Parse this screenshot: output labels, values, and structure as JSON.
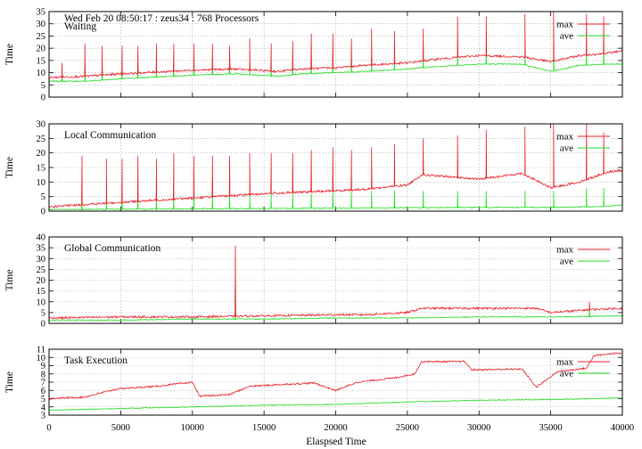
{
  "figure": {
    "header": "Wed Feb 20 08:50:17 : zeus34 : 768 Processors",
    "xlabel": "Elaspsed Time",
    "x_ticks": [
      0,
      5000,
      10000,
      15000,
      20000,
      25000,
      30000,
      35000,
      40000
    ]
  },
  "colors": {
    "max": "#e8202a",
    "ave": "#22dd22",
    "grid": "#9a9a9a"
  },
  "chart_data": [
    {
      "type": "line",
      "title": "Waiting",
      "ylabel": "Time",
      "xlim": [
        0,
        40000
      ],
      "ylim": [
        0,
        35
      ],
      "y_ticks": [
        0,
        5,
        10,
        15,
        20,
        25,
        30,
        35
      ],
      "legend": "top-right",
      "grid": true,
      "baseline": {
        "max": [
          [
            0,
            8
          ],
          [
            2500,
            8.5
          ],
          [
            5000,
            9.5
          ],
          [
            10000,
            11
          ],
          [
            13000,
            11.5
          ],
          [
            16000,
            10.5
          ],
          [
            17500,
            11.5
          ],
          [
            20000,
            12
          ],
          [
            22000,
            13
          ],
          [
            25000,
            14
          ],
          [
            27000,
            15.5
          ],
          [
            30000,
            17
          ],
          [
            33000,
            16.5
          ],
          [
            35000,
            14.5
          ],
          [
            37000,
            17
          ],
          [
            39000,
            18
          ],
          [
            40000,
            19
          ]
        ],
        "ave": [
          [
            0,
            6.5
          ],
          [
            2500,
            6.5
          ],
          [
            5000,
            7.5
          ],
          [
            10000,
            9
          ],
          [
            13000,
            9.5
          ],
          [
            16000,
            8.5
          ],
          [
            17500,
            9.5
          ],
          [
            20000,
            10
          ],
          [
            22000,
            10.5
          ],
          [
            25000,
            11.5
          ],
          [
            27000,
            12.5
          ],
          [
            30000,
            13.5
          ],
          [
            33000,
            13.5
          ],
          [
            35000,
            10.5
          ],
          [
            37000,
            13
          ],
          [
            39000,
            13.5
          ],
          [
            40000,
            13.5
          ]
        ]
      },
      "spikes": {
        "x": [
          900,
          2500,
          3700,
          5100,
          6200,
          7500,
          8700,
          10100,
          11400,
          12600,
          14000,
          15500,
          17000,
          18300,
          19800,
          21100,
          22500,
          24100,
          26100,
          28500,
          30500,
          33200,
          35200,
          37500,
          38700
        ],
        "max": [
          14,
          22,
          21,
          21,
          21,
          22,
          22,
          22,
          22,
          21,
          24,
          22,
          23,
          26,
          26,
          24,
          28,
          27,
          28,
          33,
          33,
          34,
          35,
          34,
          33
        ],
        "ave": [
          11,
          13,
          13,
          13,
          13,
          13,
          13,
          13,
          13,
          13,
          14,
          14,
          14,
          15,
          15,
          15,
          16,
          16,
          17,
          19,
          19,
          19,
          20,
          20,
          20
        ]
      },
      "series": [
        {
          "name": "max"
        },
        {
          "name": "ave"
        }
      ]
    },
    {
      "type": "line",
      "title": "Local Communication",
      "ylabel": "Time",
      "xlim": [
        0,
        40000
      ],
      "ylim": [
        0,
        30
      ],
      "y_ticks": [
        0,
        5,
        10,
        15,
        20,
        25,
        30
      ],
      "legend": "top-right",
      "grid": true,
      "baseline": {
        "max": [
          [
            0,
            1.5
          ],
          [
            5000,
            3
          ],
          [
            10000,
            4.5
          ],
          [
            15000,
            6
          ],
          [
            20000,
            7
          ],
          [
            22000,
            7.5
          ],
          [
            25000,
            9
          ],
          [
            26000,
            12.5
          ],
          [
            30000,
            11
          ],
          [
            33000,
            13
          ],
          [
            35000,
            8
          ],
          [
            37000,
            10
          ],
          [
            39000,
            13.5
          ],
          [
            40000,
            14
          ]
        ],
        "ave": [
          [
            0,
            0.5
          ],
          [
            5000,
            0.7
          ],
          [
            10000,
            0.8
          ],
          [
            15000,
            0.9
          ],
          [
            20000,
            1
          ],
          [
            25000,
            1.2
          ],
          [
            30000,
            1.3
          ],
          [
            35000,
            1.3
          ],
          [
            38000,
            1.5
          ],
          [
            40000,
            2
          ]
        ]
      },
      "spikes": {
        "x": [
          2300,
          4000,
          5100,
          6200,
          7500,
          8700,
          10100,
          11400,
          12600,
          14000,
          15500,
          17000,
          18300,
          19800,
          21100,
          22500,
          24100,
          26100,
          28500,
          30500,
          33200,
          35200,
          37500,
          38700
        ],
        "max": [
          19,
          18,
          18,
          19,
          18,
          20,
          19,
          19,
          19,
          20,
          20,
          20,
          21,
          22,
          21,
          22,
          23,
          25,
          26,
          28,
          29,
          30,
          31,
          27
        ],
        "ave": [
          6,
          6,
          6,
          6,
          6,
          6,
          6,
          6,
          6,
          6,
          6,
          6,
          6,
          7,
          7,
          7,
          7,
          7,
          7,
          7,
          7,
          7,
          8,
          8
        ]
      },
      "series": [
        {
          "name": "max"
        },
        {
          "name": "ave"
        }
      ]
    },
    {
      "type": "line",
      "title": "Global Communication",
      "ylabel": "Time",
      "xlim": [
        0,
        40000
      ],
      "ylim": [
        0,
        40
      ],
      "y_ticks": [
        0,
        5,
        10,
        15,
        20,
        25,
        30,
        35,
        40
      ],
      "legend": "top-right",
      "grid": true,
      "baseline": {
        "max": [
          [
            0,
            2.5
          ],
          [
            5000,
            3
          ],
          [
            10000,
            3
          ],
          [
            15000,
            3.5
          ],
          [
            20000,
            4
          ],
          [
            22000,
            4
          ],
          [
            25000,
            5
          ],
          [
            26000,
            7
          ],
          [
            30000,
            7
          ],
          [
            34000,
            7
          ],
          [
            35000,
            5
          ],
          [
            38000,
            6.5
          ],
          [
            40000,
            7
          ]
        ],
        "ave": [
          [
            0,
            1.5
          ],
          [
            5000,
            1.5
          ],
          [
            10000,
            2
          ],
          [
            15000,
            2
          ],
          [
            20000,
            2.5
          ],
          [
            25000,
            2.5
          ],
          [
            30000,
            3
          ],
          [
            35000,
            3
          ],
          [
            40000,
            3.5
          ]
        ]
      },
      "spikes": {
        "x": [
          13000,
          37700
        ],
        "max": [
          36,
          10
        ],
        "ave": [
          30,
          9
        ]
      },
      "series": [
        {
          "name": "max"
        },
        {
          "name": "ave"
        }
      ]
    },
    {
      "type": "line",
      "title": "Task Execution",
      "ylabel": "Time",
      "xlim": [
        0,
        40000
      ],
      "ylim": [
        3,
        11
      ],
      "y_ticks": [
        3,
        4,
        5,
        6,
        7,
        8,
        9,
        10,
        11
      ],
      "legend": "top-right",
      "grid": true,
      "baseline": {
        "max": [
          [
            0,
            5
          ],
          [
            2500,
            5.2
          ],
          [
            4800,
            6.2
          ],
          [
            7500,
            6.5
          ],
          [
            10000,
            7
          ],
          [
            10500,
            5.3
          ],
          [
            12600,
            5.5
          ],
          [
            14000,
            6.5
          ],
          [
            16000,
            6.7
          ],
          [
            18500,
            6.9
          ],
          [
            20000,
            6
          ],
          [
            21500,
            7
          ],
          [
            24000,
            7.5
          ],
          [
            25500,
            8
          ],
          [
            26000,
            9.5
          ],
          [
            29000,
            9.5
          ],
          [
            29500,
            8.5
          ],
          [
            33000,
            8.6
          ],
          [
            34000,
            6.4
          ],
          [
            35500,
            8.3
          ],
          [
            37500,
            8.7
          ],
          [
            38000,
            10.2
          ],
          [
            39500,
            10.5
          ]
        ],
        "ave": [
          [
            0,
            3.6
          ],
          [
            5000,
            3.8
          ],
          [
            10000,
            4
          ],
          [
            15000,
            4.2
          ],
          [
            20000,
            4.3
          ],
          [
            25000,
            4.6
          ],
          [
            30000,
            4.8
          ],
          [
            35000,
            4.9
          ],
          [
            38000,
            5
          ],
          [
            40000,
            5.1
          ]
        ]
      },
      "series": [
        {
          "name": "max"
        },
        {
          "name": "ave"
        }
      ]
    }
  ]
}
